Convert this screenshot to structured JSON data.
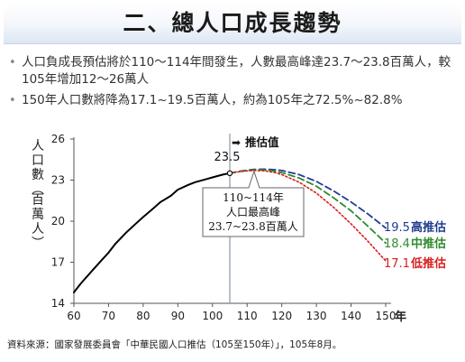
{
  "slide": {
    "title": "二、總人口成長趨勢",
    "bullets": [
      {
        "text": "人口負成長預估將於110～114年間發生，人數最高峰達23.7～23.8百萬人，較105年增加12～26萬人"
      },
      {
        "text": "150年人口數將降為17.1~19.5百萬人，約為105年之72.5%~82.8%"
      }
    ],
    "source": "資料來源：國家發展委員會「中華民國人口推估（105至150年）」，105年8月。"
  },
  "chart_data": {
    "type": "line",
    "x_label": "年",
    "y_label": "人口數（百萬人）",
    "xlim": [
      60,
      150
    ],
    "ylim": [
      14,
      26
    ],
    "x_ticks": [
      60,
      70,
      80,
      90,
      100,
      110,
      120,
      130,
      140,
      150
    ],
    "y_ticks": [
      14,
      17,
      20,
      23,
      26
    ],
    "grid": false,
    "projection_marker": {
      "x": 105,
      "label": "推估值"
    },
    "peak_label": "23.5",
    "peak_point": {
      "x": 105,
      "y": 23.5
    },
    "annotation_lines": [
      "110~114年",
      "人口最高峰",
      "23.7~23.8百萬人"
    ],
    "series": [
      {
        "name": "",
        "style": "solid",
        "color": "#000000",
        "x": [
          60,
          62,
          65,
          68,
          70,
          72,
          75,
          78,
          80,
          83,
          85,
          88,
          90,
          93,
          95,
          98,
          100,
          103,
          105
        ],
        "y": [
          14.8,
          15.45,
          16.3,
          17.15,
          17.7,
          18.35,
          19.15,
          19.85,
          20.3,
          20.95,
          21.4,
          21.85,
          22.3,
          22.65,
          22.85,
          23.05,
          23.2,
          23.4,
          23.5
        ]
      },
      {
        "name": "高推估",
        "end_label": "19.5",
        "style": "dashed",
        "color": "#1f3c8f",
        "x": [
          105,
          108,
          110,
          112,
          115,
          118,
          120,
          125,
          130,
          135,
          140,
          145,
          150
        ],
        "y": [
          23.5,
          23.65,
          23.72,
          23.78,
          23.8,
          23.76,
          23.7,
          23.4,
          22.9,
          22.2,
          21.4,
          20.5,
          19.5
        ]
      },
      {
        "name": "中推估",
        "end_label": "18.4",
        "style": "dashed",
        "color": "#2e8b2e",
        "x": [
          105,
          108,
          110,
          112,
          114,
          117,
          120,
          125,
          130,
          135,
          140,
          145,
          150
        ],
        "y": [
          23.5,
          23.64,
          23.7,
          23.74,
          23.75,
          23.7,
          23.55,
          23.15,
          22.55,
          21.7,
          20.75,
          19.6,
          18.4
        ]
      },
      {
        "name": "低推估",
        "end_label": "17.1",
        "style": "dotted",
        "color": "#d62020",
        "x": [
          105,
          108,
          110,
          112,
          115,
          118,
          120,
          125,
          130,
          135,
          140,
          145,
          150
        ],
        "y": [
          23.5,
          23.62,
          23.67,
          23.7,
          23.68,
          23.55,
          23.4,
          22.85,
          22.05,
          21.0,
          19.8,
          18.5,
          17.1
        ]
      }
    ],
    "colors": {
      "axis": "#555555",
      "marker_line": "#8899aa",
      "callout_border": "#666666"
    }
  }
}
